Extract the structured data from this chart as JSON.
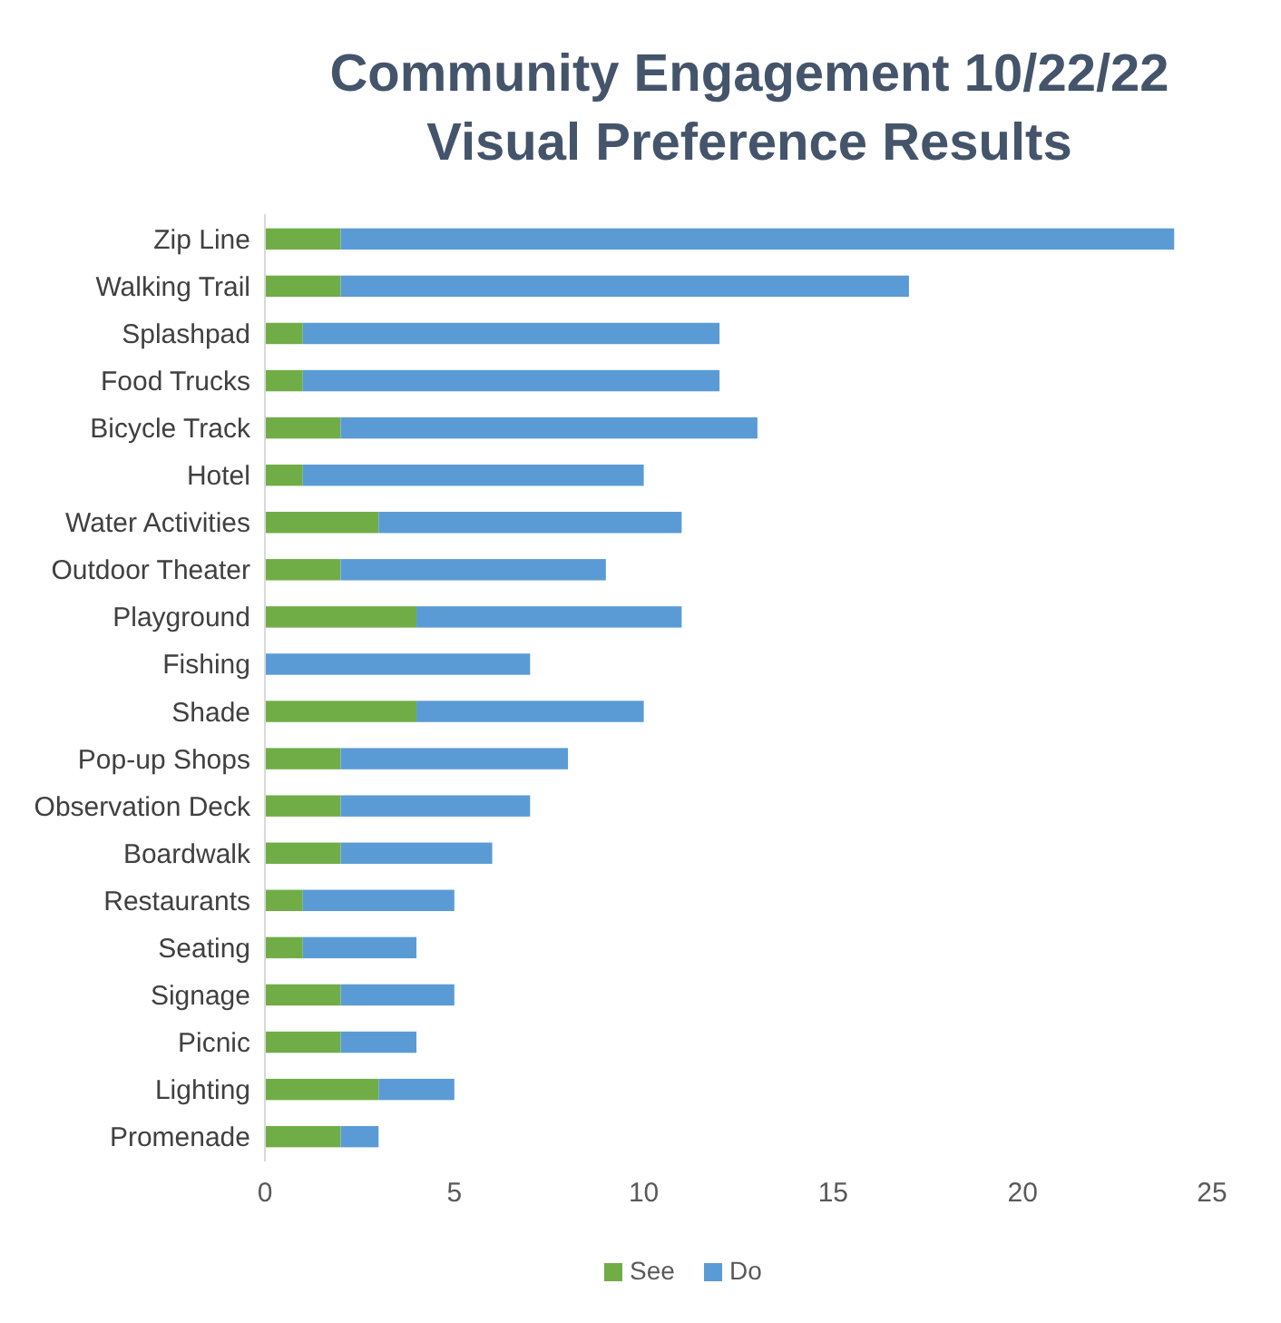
{
  "chart_data": {
    "type": "bar",
    "orientation": "horizontal",
    "stacked": true,
    "title": "Community Engagement 10/22/22",
    "subtitle": "Visual Preference Results",
    "categories": [
      "Zip Line",
      "Walking Trail",
      "Splashpad",
      "Food Trucks",
      "Bicycle Track",
      "Hotel",
      "Water Activities",
      "Outdoor Theater",
      "Playground",
      "Fishing",
      "Shade",
      "Pop-up Shops",
      "Observation Deck",
      "Boardwalk",
      "Restaurants",
      "Seating",
      "Signage",
      "Picnic",
      "Lighting",
      "Promenade"
    ],
    "series": [
      {
        "name": "See",
        "color": "#70ad47",
        "values": [
          2,
          2,
          1,
          1,
          2,
          1,
          3,
          2,
          4,
          0,
          4,
          2,
          2,
          2,
          1,
          1,
          2,
          2,
          3,
          2
        ]
      },
      {
        "name": "Do",
        "color": "#5b9bd5",
        "values": [
          22,
          15,
          11,
          11,
          11,
          9,
          8,
          7,
          7,
          7,
          6,
          6,
          5,
          4,
          4,
          3,
          3,
          2,
          2,
          1
        ]
      }
    ],
    "xlim": [
      0,
      25
    ],
    "xticks": [
      0,
      5,
      10,
      15,
      20,
      25
    ],
    "grid": false,
    "legend": "bottom"
  }
}
